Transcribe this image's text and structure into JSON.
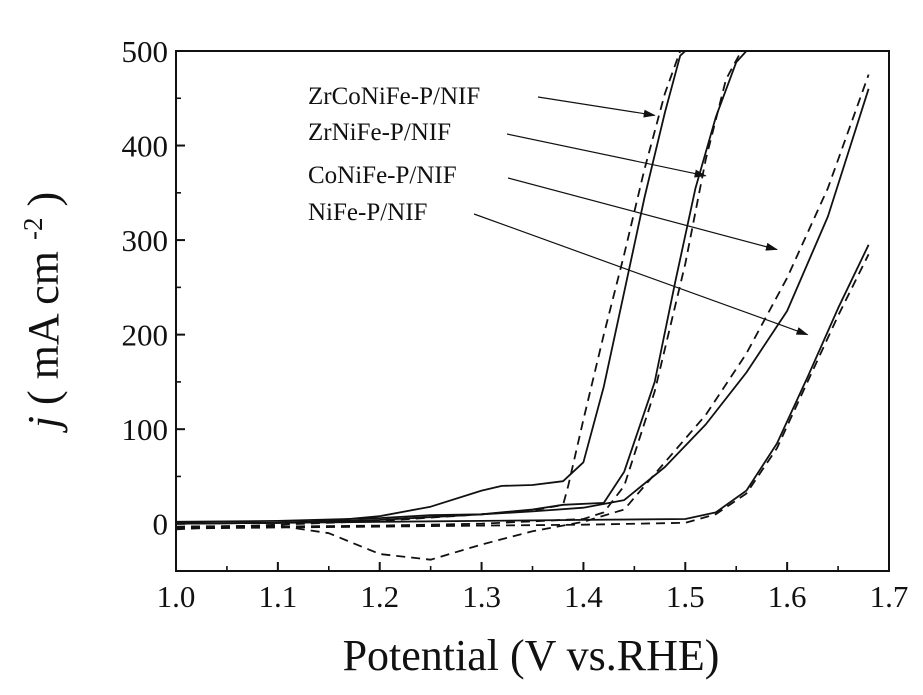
{
  "chart_data": {
    "type": "line",
    "title": "",
    "xlabel": "Potential (V vs.RHE)",
    "ylabel": {
      "italic": "j",
      "unit": "mA cm",
      "exponent": "-2"
    },
    "xlim": [
      1.0,
      1.7
    ],
    "ylim": [
      -50,
      500
    ],
    "xticks": [
      "1.0",
      "1.1",
      "1.2",
      "1.3",
      "1.4",
      "1.5",
      "1.6",
      "1.7"
    ],
    "yticks": [
      "0",
      "100",
      "200",
      "300",
      "400",
      "500"
    ],
    "grid": false,
    "legend_placement": "annotations with arrows, upper middle",
    "series": [
      {
        "name": "ZrCoNiFe-P/NIF",
        "arrow_to": [
          1.47,
          432
        ],
        "solid": [
          [
            1.0,
            0
          ],
          [
            1.1,
            1
          ],
          [
            1.15,
            3
          ],
          [
            1.2,
            8
          ],
          [
            1.25,
            18
          ],
          [
            1.3,
            35
          ],
          [
            1.32,
            40
          ],
          [
            1.35,
            41
          ],
          [
            1.38,
            45
          ],
          [
            1.4,
            65
          ],
          [
            1.42,
            145
          ],
          [
            1.44,
            245
          ],
          [
            1.46,
            345
          ],
          [
            1.48,
            435
          ],
          [
            1.495,
            495
          ],
          [
            1.5,
            500
          ]
        ],
        "dashed": [
          [
            1.0,
            -6
          ],
          [
            1.05,
            -3
          ],
          [
            1.1,
            -1
          ],
          [
            1.2,
            3
          ],
          [
            1.3,
            10
          ],
          [
            1.35,
            14
          ],
          [
            1.38,
            20
          ],
          [
            1.385,
            40
          ],
          [
            1.4,
            110
          ],
          [
            1.42,
            200
          ],
          [
            1.44,
            285
          ],
          [
            1.46,
            375
          ],
          [
            1.48,
            455
          ],
          [
            1.495,
            500
          ]
        ]
      },
      {
        "name": "ZrNiFe-P/NIF",
        "arrow_to": [
          1.52,
          368
        ],
        "solid": [
          [
            1.0,
            0
          ],
          [
            1.1,
            1
          ],
          [
            1.2,
            4
          ],
          [
            1.3,
            10
          ],
          [
            1.35,
            15
          ],
          [
            1.38,
            20
          ],
          [
            1.42,
            22
          ],
          [
            1.44,
            55
          ],
          [
            1.47,
            150
          ],
          [
            1.49,
            255
          ],
          [
            1.51,
            355
          ],
          [
            1.53,
            430
          ],
          [
            1.55,
            488
          ],
          [
            1.56,
            500
          ]
        ],
        "dashed": [
          [
            1.0,
            -4
          ],
          [
            1.1,
            -3
          ],
          [
            1.2,
            -2
          ],
          [
            1.3,
            0
          ],
          [
            1.4,
            5
          ],
          [
            1.42,
            12
          ],
          [
            1.44,
            40
          ],
          [
            1.47,
            140
          ],
          [
            1.5,
            275
          ],
          [
            1.52,
            385
          ],
          [
            1.54,
            470
          ],
          [
            1.555,
            500
          ]
        ]
      },
      {
        "name": "CoNiFe-P/NIF",
        "arrow_to": [
          1.59,
          290
        ],
        "solid": [
          [
            1.0,
            2
          ],
          [
            1.1,
            3
          ],
          [
            1.2,
            6
          ],
          [
            1.25,
            9
          ],
          [
            1.3,
            10
          ],
          [
            1.35,
            13
          ],
          [
            1.4,
            17
          ],
          [
            1.44,
            25
          ],
          [
            1.48,
            60
          ],
          [
            1.52,
            105
          ],
          [
            1.56,
            160
          ],
          [
            1.6,
            225
          ],
          [
            1.64,
            325
          ],
          [
            1.68,
            460
          ]
        ],
        "dashed": [
          [
            1.0,
            -3
          ],
          [
            1.1,
            -2
          ],
          [
            1.15,
            -10
          ],
          [
            1.2,
            -32
          ],
          [
            1.25,
            -38
          ],
          [
            1.3,
            -22
          ],
          [
            1.35,
            -8
          ],
          [
            1.4,
            2
          ],
          [
            1.44,
            15
          ],
          [
            1.48,
            65
          ],
          [
            1.52,
            115
          ],
          [
            1.56,
            180
          ],
          [
            1.6,
            260
          ],
          [
            1.64,
            355
          ],
          [
            1.68,
            475
          ]
        ]
      },
      {
        "name": "NiFe-P/NIF",
        "arrow_to": [
          1.62,
          200
        ],
        "solid": [
          [
            1.0,
            0
          ],
          [
            1.1,
            1
          ],
          [
            1.2,
            2
          ],
          [
            1.3,
            3
          ],
          [
            1.4,
            4
          ],
          [
            1.5,
            5
          ],
          [
            1.53,
            12
          ],
          [
            1.56,
            35
          ],
          [
            1.59,
            85
          ],
          [
            1.62,
            155
          ],
          [
            1.65,
            228
          ],
          [
            1.68,
            295
          ]
        ],
        "dashed": [
          [
            1.0,
            -5
          ],
          [
            1.1,
            -4
          ],
          [
            1.2,
            -3
          ],
          [
            1.3,
            -2
          ],
          [
            1.4,
            -1
          ],
          [
            1.5,
            1
          ],
          [
            1.53,
            10
          ],
          [
            1.56,
            32
          ],
          [
            1.59,
            80
          ],
          [
            1.62,
            150
          ],
          [
            1.65,
            220
          ],
          [
            1.68,
            285
          ]
        ]
      }
    ]
  }
}
